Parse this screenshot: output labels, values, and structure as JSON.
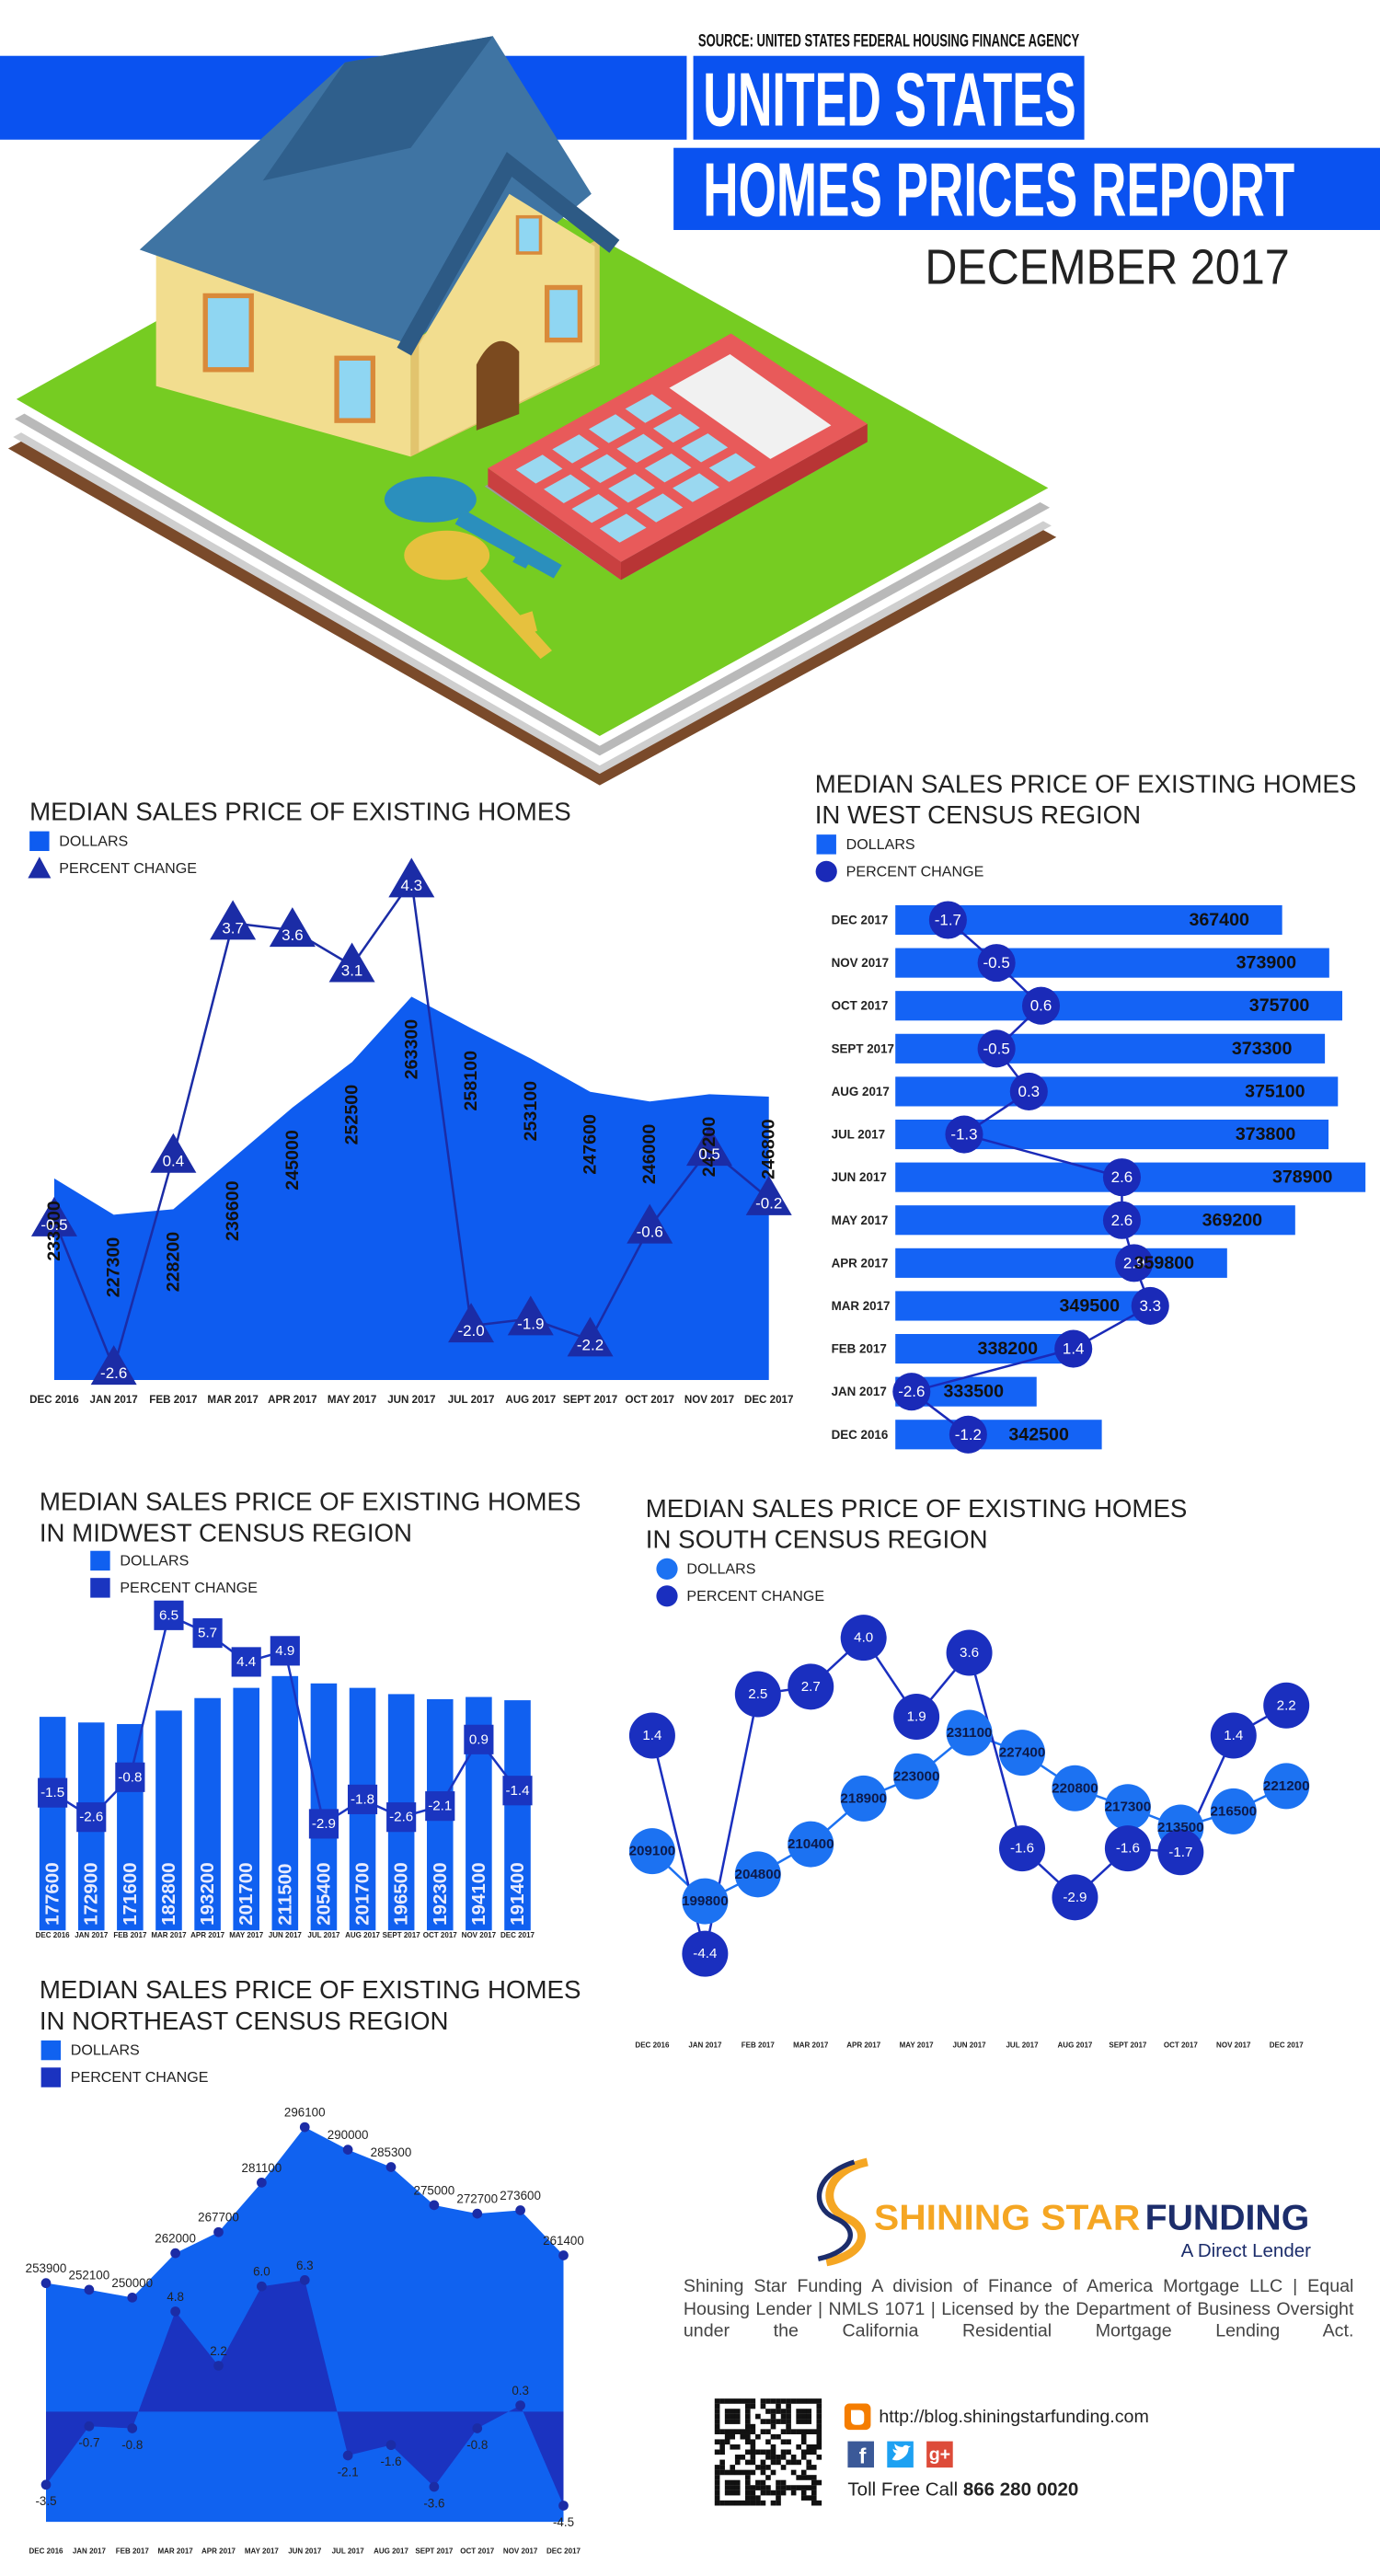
{
  "header": {
    "source": "SOURCE: UNITED STATES FEDERAL HOUSING FINANCE AGENCY",
    "title_1": "UNITED STATES",
    "title_2": "HOMES PRICES REPORT",
    "date": "DECEMBER 2017"
  },
  "chart_data": [
    {
      "type": "combo",
      "title": "MEDIAN SALES PRICE OF EXISTING HOMES",
      "categories": [
        "DEC 2016",
        "JAN 2017",
        "FEB 2017",
        "MAR 2017",
        "APR 2017",
        "MAY 2017",
        "JUN 2017",
        "JUL 2017",
        "AUG 2017",
        "SEPT 2017",
        "OCT 2017",
        "NOV 2017",
        "DEC 2017"
      ],
      "ylim": [
        200000,
        270000
      ],
      "y2lim": [
        -3,
        5
      ],
      "series": [
        {
          "name": "DOLLARS",
          "type": "area",
          "color": "#0e5cf0",
          "values": [
            233300,
            227300,
            228200,
            236600,
            245000,
            252500,
            263300,
            258100,
            253100,
            247600,
            246000,
            247200,
            246800
          ]
        },
        {
          "name": "PERCENT CHANGE",
          "type": "line",
          "marker": "triangle",
          "axis": "y2",
          "color": "#1b2ca6",
          "values": [
            -0.5,
            -2.6,
            0.4,
            3.7,
            3.6,
            3.1,
            4.3,
            -2.0,
            -1.9,
            -2.2,
            -0.6,
            0.5,
            -0.2
          ],
          "value_labels": [
            "-0.5",
            "-2.6",
            "0.4",
            "3.7",
            "3.6",
            "3.1",
            "4.3",
            "-2.0",
            "-1.9",
            "-2.2",
            "-0.6",
            "0.5",
            "-0.2"
          ]
        }
      ]
    },
    {
      "type": "bar",
      "orientation": "horizontal",
      "title": [
        "MEDIAN SALES PRICE OF EXISTING HOMES",
        "IN WEST CENSUS REGION"
      ],
      "categories": [
        "DEC 2017",
        "NOV 2017",
        "OCT 2017",
        "SEPT 2017",
        "AUG 2017",
        "JUL 2017",
        "JUN 2017",
        "MAY 2017",
        "APR 2017",
        "MAR 2017",
        "FEB 2017",
        "JAN 2017",
        "DEC 2016"
      ],
      "ylim": [
        314000,
        380000
      ],
      "y2lim": [
        -3,
        5
      ],
      "series": [
        {
          "name": "DOLLARS",
          "type": "bar",
          "color": "#1463f5",
          "values": [
            367400,
            373900,
            375700,
            373300,
            375100,
            373800,
            378900,
            369200,
            359800,
            349500,
            338200,
            333500,
            342500
          ]
        },
        {
          "name": "PERCENT CHANGE",
          "type": "line",
          "marker": "circle",
          "axis": "y2",
          "color": "#1a2ab8",
          "values": [
            -1.7,
            -0.5,
            0.6,
            -0.5,
            0.3,
            -1.3,
            2.6,
            2.6,
            2.9,
            3.3,
            1.4,
            -2.6,
            -1.2
          ]
        }
      ]
    },
    {
      "type": "combo",
      "title": [
        "MEDIAN SALES PRICE OF EXISTING HOMES",
        "IN MIDWEST CENSUS REGION"
      ],
      "categories": [
        "DEC 2016",
        "JAN 2017",
        "FEB 2017",
        "MAR 2017",
        "APR 2017",
        "MAY 2017",
        "JUN 2017",
        "JUL 2017",
        "AUG 2017",
        "SEPT 2017",
        "OCT 2017",
        "NOV 2017",
        "DEC 2017"
      ],
      "ylim": [
        0,
        220000
      ],
      "y2lim": [
        -4,
        8
      ],
      "series": [
        {
          "name": "DOLLARS",
          "type": "bar",
          "color": "#1060f0",
          "values": [
            177600,
            172900,
            171600,
            182800,
            193200,
            201700,
            211500,
            205400,
            201700,
            196500,
            192300,
            194100,
            191400
          ]
        },
        {
          "name": "PERCENT CHANGE",
          "type": "line",
          "marker": "square",
          "axis": "y2",
          "color": "#1a35c0",
          "values": [
            -1.5,
            -2.6,
            -0.8,
            6.5,
            5.7,
            4.4,
            4.9,
            -2.9,
            -1.8,
            -2.6,
            -2.1,
            0.9,
            -1.4
          ]
        }
      ]
    },
    {
      "type": "line",
      "title": [
        "MEDIAN SALES PRICE OF EXISTING HOMES",
        "IN SOUTH CENSUS REGION"
      ],
      "categories": [
        "DEC 2016",
        "JAN 2017",
        "FEB 2017",
        "MAR 2017",
        "APR 2017",
        "MAY 2017",
        "JUN 2017",
        "JUL 2017",
        "AUG 2017",
        "SEPT 2017",
        "OCT 2017",
        "NOV 2017",
        "DEC 2017"
      ],
      "ylim": [
        195000,
        235000
      ],
      "y2lim": [
        -5,
        5
      ],
      "series": [
        {
          "name": "DOLLARS",
          "type": "line",
          "marker": "circle",
          "color": "#1c72f2",
          "values": [
            209100,
            199800,
            204800,
            210400,
            218900,
            223000,
            231100,
            227400,
            220800,
            217300,
            213500,
            216500,
            221200
          ]
        },
        {
          "name": "PERCENT CHANGE",
          "type": "line",
          "marker": "circle",
          "axis": "y2",
          "color": "#1a2fbf",
          "values": [
            1.4,
            -4.4,
            2.5,
            2.7,
            4.0,
            1.9,
            3.6,
            -1.6,
            -2.9,
            -1.6,
            -1.7,
            1.4,
            2.2
          ],
          "value_labels": [
            "1.4",
            "-4.4",
            "2.5",
            "2.7",
            "4.0",
            "1.9",
            "3.6",
            "-1.6",
            "-2.9",
            "-1.6",
            "-1.7",
            "1.4",
            "2.2"
          ]
        }
      ]
    },
    {
      "type": "area",
      "title": [
        "MEDIAN SALES PRICE OF EXISTING HOMES",
        "IN NORTHEAST CENSUS REGION"
      ],
      "categories": [
        "DEC 2016",
        "JAN 2017",
        "FEB 2017",
        "MAR 2017",
        "APR 2017",
        "MAY 2017",
        "JUN 2017",
        "JUL 2017",
        "AUG 2017",
        "SEPT 2017",
        "OCT 2017",
        "NOV 2017",
        "DEC 2017"
      ],
      "ylim": [
        200000,
        300000
      ],
      "y2lim": [
        -5,
        7
      ],
      "series": [
        {
          "name": "DOLLARS",
          "type": "area",
          "color": "#1062f0",
          "values": [
            253900,
            252100,
            250000,
            262000,
            267700,
            281100,
            296100,
            290000,
            285300,
            275000,
            272700,
            273600,
            261400
          ]
        },
        {
          "name": "PERCENT CHANGE",
          "type": "area",
          "axis": "y2",
          "color": "#1b33c0",
          "values": [
            -3.5,
            -0.7,
            -0.8,
            4.8,
            2.2,
            6.0,
            6.3,
            -2.1,
            -1.6,
            -3.6,
            -0.8,
            0.3,
            -4.5
          ],
          "value_labels": [
            "-3.5",
            "-0.7",
            "-0.8",
            "4.8",
            "2.2",
            "6.0",
            "6.3",
            "-2.1",
            "-1.6",
            "-3.6",
            "-0.8",
            "0.3",
            "-4.5"
          ]
        }
      ]
    }
  ],
  "footer": {
    "brand_1": "SHINING STAR",
    "brand_2": "FUNDING",
    "tagline": "A Direct Lender",
    "disclaimer": "Shining Star Funding A division of Finance of America Mortgage LLC | Equal Housing Lender | NMLS 1071 | Licensed by the Department of Business Oversight under the California Residential Mortgage Lending Act.",
    "url": "http://blog.shiningstarfunding.com",
    "facebook": "f",
    "google": "g+",
    "call_label": "Toll Free Call",
    "phone": "866 280 0020"
  }
}
